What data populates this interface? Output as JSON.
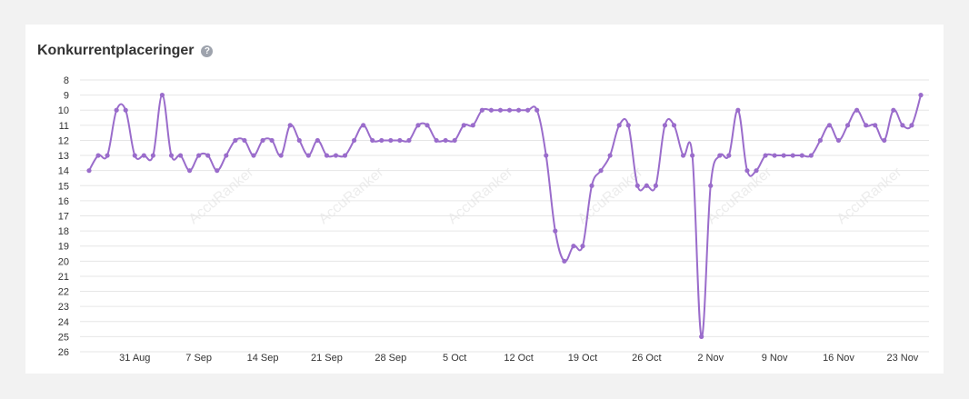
{
  "header": {
    "title": "Konkurrentplaceringer",
    "help_glyph": "?"
  },
  "watermark": "AccuRanker",
  "colors": {
    "series": "#9a6ccb",
    "grid": "#e6e6e6",
    "text": "#333333"
  },
  "chart_data": {
    "type": "line",
    "title": "Konkurrentplaceringer",
    "y_reversed": true,
    "ylim": [
      8,
      26
    ],
    "y_ticks": [
      8,
      9,
      10,
      11,
      12,
      13,
      14,
      15,
      16,
      17,
      18,
      19,
      20,
      21,
      22,
      23,
      24,
      25,
      26
    ],
    "x_ticks": [
      "31 Aug",
      "7 Sep",
      "14 Sep",
      "21 Sep",
      "28 Sep",
      "5 Oct",
      "12 Oct",
      "19 Oct",
      "26 Oct",
      "2 Nov",
      "9 Nov",
      "16 Nov",
      "23 Nov"
    ],
    "x_start": "2020-08-26",
    "grid": true,
    "legend": "none",
    "values": [
      14,
      13,
      13,
      10,
      10,
      13,
      13,
      13,
      9,
      13,
      13,
      14,
      13,
      13,
      14,
      13,
      12,
      12,
      13,
      12,
      12,
      13,
      11,
      12,
      13,
      12,
      13,
      13,
      13,
      12,
      11,
      12,
      12,
      12,
      12,
      12,
      11,
      11,
      12,
      12,
      12,
      11,
      11,
      10,
      10,
      10,
      10,
      10,
      10,
      10,
      13,
      18,
      20,
      19,
      19,
      15,
      14,
      13,
      11,
      11,
      15,
      15,
      15,
      11,
      11,
      13,
      13,
      25,
      15,
      13,
      13,
      10,
      14,
      14,
      13,
      13,
      13,
      13,
      13,
      13,
      12,
      11,
      12,
      11,
      10,
      11,
      11,
      12,
      10,
      11,
      11,
      9
    ]
  }
}
